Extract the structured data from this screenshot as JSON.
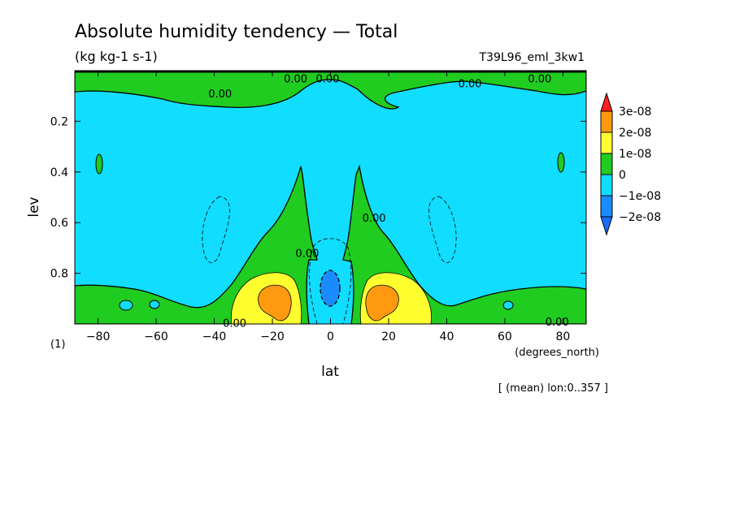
{
  "chart_data": {
    "type": "contour",
    "title": "Absolute humidity tendency — Total",
    "units": "(kg kg-1 s-1)",
    "experiment": "T39L96_eml_3kw1",
    "xlabel": "lat",
    "x_units": "(degrees_north)",
    "ylabel": "lev",
    "y_units": "(1)",
    "mean_note": "[ (mean) lon:0..357 ]",
    "xlim": [
      -88,
      88
    ],
    "ylim": [
      1.0,
      0.0
    ],
    "x_ticks": [
      -80,
      -60,
      -40,
      -20,
      0,
      20,
      40,
      60,
      80
    ],
    "x_tick_labels": [
      "−80",
      "−60",
      "−40",
      "−20",
      "0",
      "20",
      "40",
      "60",
      "80"
    ],
    "y_ticks": [
      0.2,
      0.4,
      0.6,
      0.8
    ],
    "y_tick_labels": [
      "0.2",
      "0.4",
      "0.6",
      "0.8"
    ],
    "contour_labels": [
      {
        "text": "0.00",
        "lat": -38,
        "lev": 0.09
      },
      {
        "text": "0.00",
        "lat": -33,
        "lev": 0.995
      },
      {
        "text": "0.00",
        "lat": -12,
        "lev": 0.03
      },
      {
        "text": "0.00",
        "lat": -1,
        "lev": 0.03
      },
      {
        "text": "0.00",
        "lat": -8,
        "lev": 0.72
      },
      {
        "text": "0.00",
        "lat": 15,
        "lev": 0.58
      },
      {
        "text": "0.00",
        "lat": 48,
        "lev": 0.05
      },
      {
        "text": "0.00",
        "lat": 72,
        "lev": 0.03
      },
      {
        "text": "0.00",
        "lat": 78,
        "lev": 0.99
      }
    ],
    "colorbar": {
      "levels": [
        "3e-08",
        "2e-08",
        "1e-08",
        "0",
        "−1e-08",
        "−2e-08"
      ],
      "colors": [
        "#ff2020",
        "#ff9a10",
        "#ffff30",
        "#20cc20",
        "#10ddff",
        "#1a8cff",
        "#1a6cff"
      ]
    }
  }
}
